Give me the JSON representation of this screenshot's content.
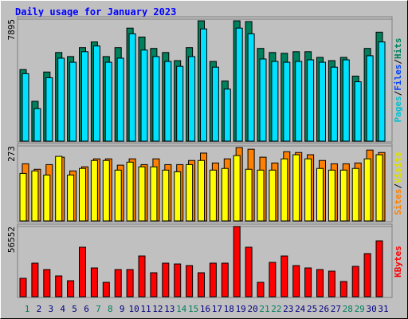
{
  "title": "Daily usage for January 2023",
  "legend_separator": "/",
  "chart_data": [
    {
      "type": "bar",
      "ylim": [
        0,
        7895
      ],
      "yticks": [
        7895
      ],
      "grid": true,
      "legend": [
        "Pages",
        "Files",
        "Hits"
      ],
      "legend_colors": [
        "#00c0d0",
        "#0040ff",
        "#00805c"
      ],
      "series": [
        {
          "color": "#00805c",
          "values": [
            4632,
            2579,
            4474,
            5737,
            5474,
            6053,
            6421,
            5474,
            6053,
            7316,
            6737,
            6000,
            5737,
            5211,
            6053,
            7789,
            5158,
            3895,
            7789,
            7737,
            6000,
            5737,
            5684,
            5789,
            5789,
            5421,
            5211,
            5421,
            4211,
            6000,
            7053
          ]
        },
        {
          "color": "#00e0ff",
          "values": [
            4368,
            2105,
            4105,
            5368,
            5105,
            5789,
            6158,
            5105,
            5368,
            6947,
            5895,
            5474,
            5158,
            4842,
            5474,
            7263,
            4789,
            3368,
            7316,
            6947,
            5316,
            5158,
            5105,
            5158,
            5263,
            5105,
            4789,
            5263,
            3842,
            5526,
            6421
          ]
        }
      ]
    },
    {
      "type": "bar",
      "ylim": [
        0,
        273
      ],
      "yticks": [
        273
      ],
      "grid": true,
      "legend": [
        "Sites",
        "Visits"
      ],
      "legend_colors": [
        "#ff8000",
        "#e0e000"
      ],
      "series": [
        {
          "color": "#ff8000",
          "values": [
            208,
            188,
            205,
            232,
            182,
            197,
            226,
            226,
            203,
            226,
            205,
            226,
            205,
            205,
            220,
            247,
            211,
            226,
            267,
            261,
            232,
            211,
            252,
            249,
            241,
            220,
            208,
            208,
            211,
            258,
            249
          ]
        },
        {
          "color": "#ffff00",
          "values": [
            173,
            182,
            167,
            235,
            167,
            191,
            220,
            220,
            185,
            214,
            197,
            197,
            185,
            179,
            205,
            220,
            185,
            191,
            238,
            188,
            185,
            185,
            226,
            241,
            226,
            191,
            185,
            185,
            191,
            226,
            241
          ]
        }
      ]
    },
    {
      "type": "bar",
      "ylim": [
        0,
        56552
      ],
      "yticks": [
        56552
      ],
      "grid": true,
      "legend": [
        "KBytes"
      ],
      "legend_colors": [
        "#ff0000"
      ],
      "categories": [
        "1",
        "2",
        "3",
        "4",
        "5",
        "6",
        "7",
        "8",
        "9",
        "10",
        "11",
        "12",
        "13",
        "14",
        "15",
        "16",
        "17",
        "18",
        "19",
        "20",
        "21",
        "22",
        "23",
        "24",
        "25",
        "26",
        "27",
        "28",
        "29",
        "30",
        "31"
      ],
      "category_colors": [
        "#00805c",
        "#000080",
        "#000080",
        "#000080",
        "#000080",
        "#000080",
        "#00805c",
        "#00805c",
        "#000080",
        "#000080",
        "#000080",
        "#000080",
        "#000080",
        "#00805c",
        "#00805c",
        "#000080",
        "#000080",
        "#000080",
        "#000080",
        "#000080",
        "#00805c",
        "#00805c",
        "#000080",
        "#000080",
        "#000080",
        "#000080",
        "#000080",
        "#00805c",
        "#00805c",
        "#000080",
        "#000080"
      ],
      "series": [
        {
          "color": "#ff0000",
          "values": [
            14780,
            26989,
            21848,
            16708,
            12852,
            39841,
            23134,
            11567,
            21848,
            21848,
            32773,
            19278,
            26989,
            26347,
            25061,
            19278,
            26989,
            26989,
            56552,
            39841,
            11567,
            27632,
            32773,
            25061,
            23134,
            21848,
            20563,
            12209,
            24419,
            34700,
            44982
          ]
        }
      ]
    }
  ]
}
